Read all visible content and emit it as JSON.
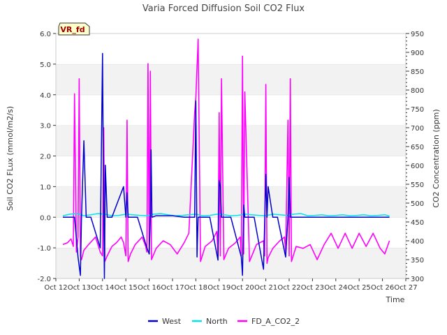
{
  "chart_data": {
    "type": "line",
    "title": "Varia Forced Diffusion Soil CO2 Flux",
    "xlabel": "Time",
    "ylabel_left": "Soil CO2 FLux (mmol/m2/s)",
    "ylabel_right": "CO2 Concentration (ppm)",
    "badge": "VR_fd",
    "x_range": [
      12,
      27
    ],
    "x_ticks": [
      "Oct 12",
      "Oct 13",
      "Oct 14",
      "Oct 15",
      "Oct 16",
      "Oct 17",
      "Oct 18",
      "Oct 19",
      "Oct 20",
      "Oct 21",
      "Oct 22",
      "Oct 23",
      "Oct 24",
      "Oct 25",
      "Oct 26",
      "Oct 27"
    ],
    "y_left_range": [
      -2.0,
      6.0
    ],
    "y_left_ticks": [
      "-2.0",
      "-1.0",
      "0.0",
      "1.0",
      "2.0",
      "3.0",
      "4.0",
      "5.0",
      "6.0"
    ],
    "y_right_range": [
      300,
      950
    ],
    "y_right_ticks": [
      "300",
      "350",
      "400",
      "450",
      "500",
      "550",
      "600",
      "650",
      "700",
      "750",
      "800",
      "850",
      "900",
      "950"
    ],
    "grid": "horizontal bands",
    "legend_position": "bottom-center",
    "series": [
      {
        "name": "West",
        "axis": "left",
        "color": "#0000cc",
        "x": [
          12.3,
          12.8,
          12.95,
          13.05,
          13.1,
          13.2,
          13.3,
          13.5,
          13.9,
          14.0,
          14.05,
          14.08,
          14.12,
          14.2,
          14.4,
          14.9,
          15.0,
          15.05,
          15.1,
          15.2,
          15.5,
          15.9,
          16.0,
          16.05,
          16.08,
          16.12,
          16.3,
          17.0,
          17.5,
          17.95,
          18.0,
          18.05,
          18.1,
          18.3,
          18.6,
          18.95,
          19.0,
          19.05,
          19.1,
          19.2,
          19.5,
          19.95,
          20.0,
          20.05,
          20.1,
          20.5,
          20.9,
          21.0,
          21.05,
          21.1,
          21.3,
          21.5,
          21.85,
          21.95,
          22.0,
          22.05,
          22.1,
          22.3,
          22.7,
          23.0,
          23.5,
          24.0,
          24.5,
          25.0,
          25.5,
          26.0,
          26.3
        ],
        "y": [
          0.0,
          0.0,
          -1.3,
          -1.9,
          0.0,
          2.5,
          0.0,
          0.0,
          -1.0,
          5.35,
          0.0,
          -2.0,
          1.7,
          0.0,
          0.0,
          1.0,
          0.0,
          0.8,
          0.0,
          0.0,
          0.0,
          -1.0,
          -1.2,
          0.0,
          2.2,
          0.0,
          0.05,
          0.05,
          0.0,
          0.0,
          3.8,
          -1.3,
          0.0,
          0.0,
          0.0,
          -1.4,
          1.2,
          1.0,
          0.0,
          0.0,
          0.0,
          -1.3,
          -1.9,
          0.4,
          0.0,
          0.0,
          -1.7,
          1.4,
          0.0,
          1.0,
          0.0,
          0.0,
          -1.3,
          0.0,
          1.3,
          0.0,
          0.0,
          0.0,
          0.0,
          0.0,
          0.0,
          0.0,
          0.0,
          0.0,
          0.0,
          0.0,
          0.0
        ]
      },
      {
        "name": "North",
        "axis": "left",
        "color": "#00e5ee",
        "x": [
          12.3,
          12.6,
          12.9,
          13.2,
          13.5,
          13.8,
          14.1,
          14.4,
          14.7,
          15.0,
          15.3,
          15.6,
          15.9,
          16.2,
          16.5,
          16.8,
          17.1,
          17.4,
          17.7,
          18.0,
          18.3,
          18.6,
          18.9,
          19.2,
          19.5,
          19.8,
          20.1,
          20.4,
          20.7,
          21.0,
          21.3,
          21.6,
          21.9,
          22.2,
          22.5,
          22.8,
          23.1,
          23.4,
          23.7,
          24.0,
          24.3,
          24.6,
          24.9,
          25.2,
          25.5,
          25.8,
          26.1,
          26.3
        ],
        "y": [
          0.05,
          0.1,
          0.12,
          0.05,
          0.08,
          0.12,
          0.1,
          0.05,
          0.06,
          0.1,
          0.08,
          0.06,
          0.05,
          0.1,
          0.12,
          0.08,
          0.05,
          0.06,
          0.08,
          0.1,
          0.05,
          0.06,
          0.1,
          0.08,
          0.05,
          0.06,
          0.1,
          0.08,
          0.06,
          0.05,
          0.1,
          0.08,
          0.06,
          0.1,
          0.12,
          0.05,
          0.06,
          0.08,
          0.05,
          0.06,
          0.08,
          0.05,
          0.06,
          0.08,
          0.05,
          0.06,
          0.08,
          0.04
        ]
      },
      {
        "name": "FD_A_CO2_2",
        "axis": "right",
        "color": "#ff00ff",
        "x": [
          12.3,
          12.5,
          12.65,
          12.75,
          12.8,
          12.88,
          12.95,
          13.0,
          13.05,
          13.1,
          13.2,
          13.4,
          13.7,
          13.9,
          14.0,
          14.05,
          14.1,
          14.2,
          14.4,
          14.6,
          14.8,
          14.9,
          15.0,
          15.05,
          15.1,
          15.2,
          15.4,
          15.7,
          15.85,
          15.9,
          15.95,
          16.0,
          16.05,
          16.1,
          16.3,
          16.6,
          16.9,
          17.2,
          17.5,
          17.7,
          17.95,
          18.0,
          18.1,
          18.2,
          18.4,
          18.7,
          18.9,
          18.95,
          19.0,
          19.05,
          19.1,
          19.2,
          19.4,
          19.7,
          19.9,
          19.95,
          20.0,
          20.05,
          20.1,
          20.3,
          20.6,
          20.9,
          20.95,
          21.0,
          21.05,
          21.1,
          21.3,
          21.6,
          21.8,
          21.85,
          21.95,
          22.0,
          22.05,
          22.1,
          22.3,
          22.6,
          22.9,
          23.2,
          23.5,
          23.8,
          24.1,
          24.4,
          24.7,
          25.0,
          25.3,
          25.6,
          25.9,
          26.1,
          26.3
        ],
        "y": [
          390,
          395,
          405,
          385,
          790,
          370,
          410,
          830,
          360,
          350,
          375,
          390,
          410,
          370,
          360,
          700,
          345,
          360,
          385,
          395,
          410,
          395,
          360,
          720,
          345,
          365,
          390,
          410,
          385,
          370,
          870,
          365,
          850,
          350,
          380,
          400,
          390,
          365,
          395,
          420,
          740,
          780,
          935,
          345,
          385,
          400,
          425,
          360,
          740,
          360,
          830,
          350,
          380,
          395,
          410,
          360,
          890,
          365,
          795,
          345,
          390,
          400,
          360,
          815,
          340,
          355,
          380,
          400,
          410,
          370,
          720,
          360,
          830,
          345,
          385,
          380,
          390,
          350,
          390,
          420,
          380,
          420,
          380,
          420,
          385,
          420,
          380,
          365,
          400
        ]
      }
    ]
  }
}
